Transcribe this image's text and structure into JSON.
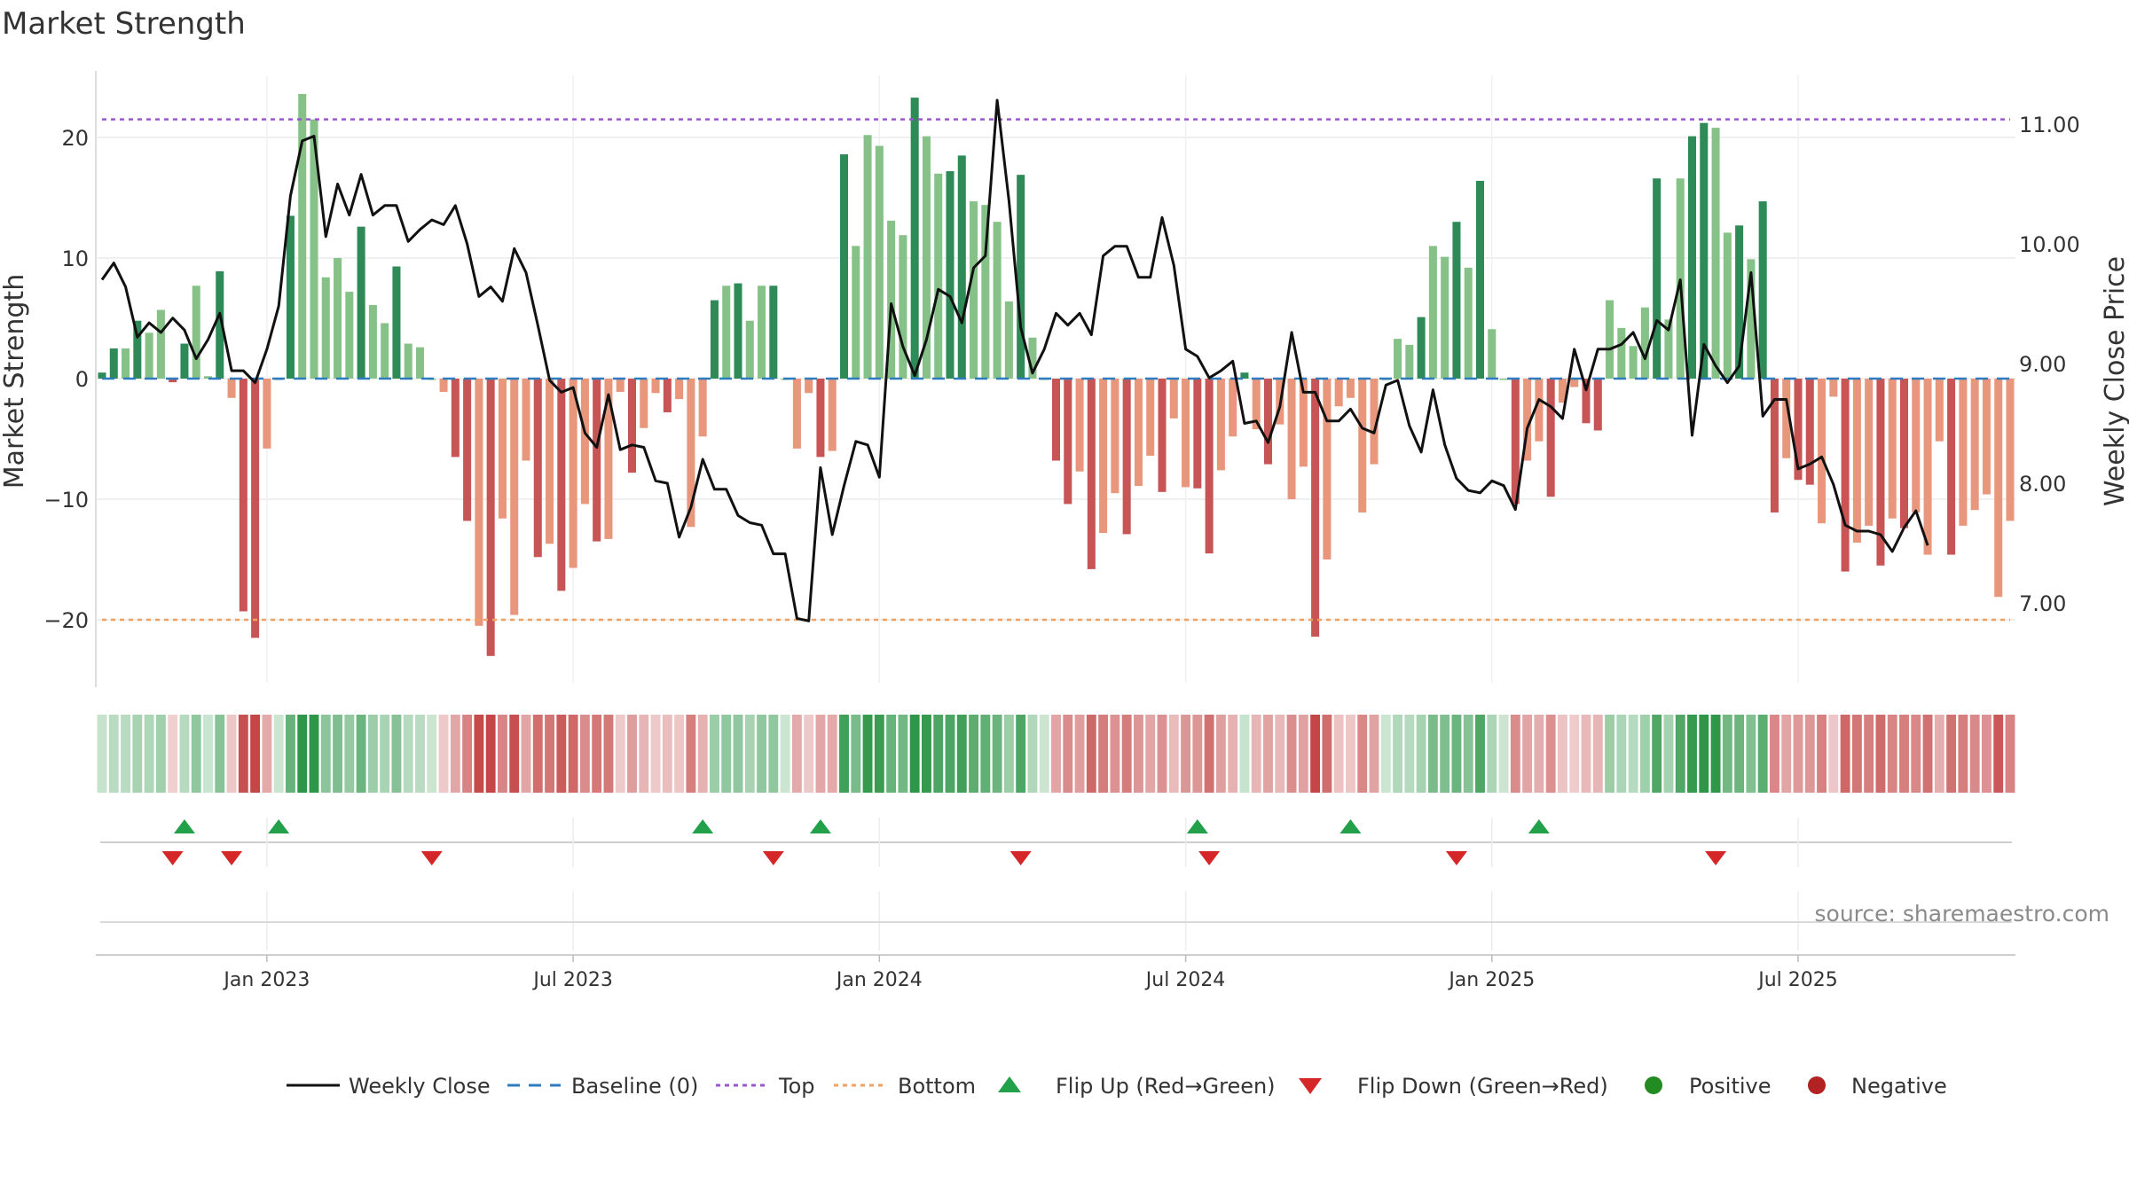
{
  "chart_data": {
    "type": "bar+line",
    "title": "Market Strength",
    "ylabel_left": "Market Strength",
    "ylabel_right": "Weekly Close Price",
    "left_ylim": [
      -25,
      25
    ],
    "left_yticks": [
      20,
      10,
      0,
      -10,
      -20
    ],
    "left_ytick_labels": [
      "20",
      "10",
      "0",
      "−10",
      "−20"
    ],
    "right_ylim": [
      6.4,
      11.2
    ],
    "right_yticks": [
      11,
      10,
      9,
      8,
      7
    ],
    "right_ytick_labels": [
      "11.00",
      "10.00",
      "9.00",
      "8.00",
      "7.00"
    ],
    "top_level": 21.5,
    "bottom_level": -20,
    "xaxis": {
      "start_week": "2022-09-26",
      "ticks": [
        {
          "week": 14,
          "label": "Jan 2023"
        },
        {
          "week": 40,
          "label": "Jul 2023"
        },
        {
          "week": 66,
          "label": "Jan 2024"
        },
        {
          "week": 92,
          "label": "Jul 2024"
        },
        {
          "week": 118,
          "label": "Jan 2025"
        },
        {
          "week": 144,
          "label": "Jul 2025"
        }
      ]
    },
    "strength": [
      0.5,
      2.5,
      2.5,
      4.8,
      3.8,
      5.7,
      -0.3,
      2.9,
      7.7,
      0.2,
      8.9,
      -1.6,
      -19.3,
      -21.5,
      -5.8,
      0,
      13.5,
      23.6,
      21.5,
      8.4,
      10,
      7.2,
      12.6,
      6.1,
      4.6,
      9.3,
      2.9,
      2.6,
      0,
      -1.1,
      -6.5,
      -11.8,
      -20.5,
      -23,
      -11.6,
      -19.6,
      -6.8,
      -14.8,
      -13.7,
      -17.6,
      -15.7,
      -10.4,
      -13.5,
      -13.3,
      -1.1,
      -7.8,
      -4.1,
      -1.2,
      -2.8,
      -1.7,
      -12.3,
      -4.8,
      6.5,
      7.7,
      7.9,
      4.8,
      7.7,
      7.7,
      0,
      -5.8,
      -1.2,
      -6.5,
      -6.0,
      18.6,
      11,
      20.2,
      19.3,
      13.1,
      11.9,
      23.3,
      20.1,
      17,
      17.2,
      18.5,
      14.7,
      14.4,
      13,
      6.4,
      16.9,
      3.4,
      0,
      -6.8,
      -10.4,
      -7.7,
      -15.8,
      -12.8,
      -9.5,
      -12.9,
      -8.9,
      -6.4,
      -9.4,
      -3.3,
      -9.0,
      -9.1,
      -14.5,
      -7.6,
      -4.8,
      0.5,
      -4.2,
      -7.1,
      -3.8,
      -10,
      -7.3,
      -21.4,
      -15,
      -2.3,
      -1.6,
      -11.1,
      -7.1,
      0,
      3.3,
      2.8,
      5.1,
      11,
      10.1,
      13,
      9.2,
      16.4,
      4.1,
      0,
      -10.4,
      -6.8,
      -5.2,
      -9.8,
      -2,
      -0.7,
      -3.7,
      -4.3,
      6.5,
      4.2,
      2.7,
      5.9,
      16.6,
      4.9,
      16.6,
      20.1,
      21.2,
      20.8,
      12.1,
      12.7,
      9.9,
      14.7,
      -11.1,
      -6.6,
      -8.4,
      -8.8,
      -12,
      -1.5,
      -16,
      -13.6,
      -12.2,
      -15.5,
      -11.6,
      -12.4,
      -11.1,
      -14.6,
      -5.2,
      -14.6,
      -12.2,
      -10.9,
      -9.6,
      -18.1,
      -11.8
    ],
    "close": [
      9.7,
      9.84,
      9.64,
      9.22,
      9.34,
      9.26,
      9.38,
      9.28,
      9.04,
      9.2,
      9.42,
      8.94,
      8.94,
      8.84,
      9.12,
      9.48,
      10.4,
      10.86,
      10.9,
      10.06,
      10.5,
      10.24,
      10.58,
      10.24,
      10.32,
      10.32,
      10.02,
      10.12,
      10.2,
      10.16,
      10.32,
      10.0,
      9.56,
      9.64,
      9.52,
      9.96,
      9.76,
      9.32,
      8.86,
      8.76,
      8.8,
      8.42,
      8.3,
      8.74,
      8.28,
      8.32,
      8.3,
      8.02,
      8.0,
      7.55,
      7.8,
      8.2,
      7.95,
      7.95,
      7.73,
      7.67,
      7.65,
      7.41,
      7.41,
      6.87,
      6.85,
      8.13,
      7.57,
      7.98,
      8.35,
      8.32,
      8.05,
      9.5,
      9.14,
      8.9,
      9.2,
      9.62,
      9.56,
      9.34,
      9.8,
      9.9,
      11.2,
      10.36,
      9.3,
      8.92,
      9.12,
      9.42,
      9.32,
      9.42,
      9.24,
      9.9,
      9.98,
      9.98,
      9.72,
      9.72,
      10.22,
      9.82,
      9.12,
      9.06,
      8.88,
      8.94,
      9.02,
      8.5,
      8.52,
      8.34,
      8.64,
      9.26,
      8.76,
      8.76,
      8.52,
      8.52,
      8.62,
      8.46,
      8.42,
      8.82,
      8.86,
      8.48,
      8.26,
      8.78,
      8.32,
      8.04,
      7.94,
      7.92,
      8.02,
      7.98,
      7.78,
      8.46,
      8.7,
      8.64,
      8.54,
      9.12,
      8.78,
      9.12,
      9.12,
      9.16,
      9.26,
      9.04,
      9.36,
      9.28,
      9.7,
      8.4,
      9.16,
      8.98,
      8.84,
      8.98,
      9.76,
      8.56,
      8.7,
      8.7,
      8.12,
      8.16,
      8.22,
      7.99,
      7.65,
      7.6,
      7.6,
      7.57,
      7.43,
      7.63,
      7.77,
      7.48
    ],
    "flip_up_weeks": [
      7,
      15,
      51,
      61,
      93,
      106,
      122
    ],
    "flip_down_weeks": [
      6,
      11,
      28,
      57,
      78,
      94,
      115,
      137
    ],
    "legend": [
      "Weekly Close",
      "Baseline (0)",
      "Top",
      "Bottom",
      "Flip Up (Red→Green)",
      "Flip Down (Green→Red)",
      "Positive",
      "Negative"
    ],
    "colors": {
      "pos_strong": "#2e8a57",
      "pos_weak": "#86c287",
      "neg_strong": "#c85556",
      "neg_weak": "#e8977c",
      "line": "#111111",
      "baseline": "#2f7bbf",
      "top": "#9a55cf",
      "bottom": "#f0a060",
      "flip_up": "#22a04a",
      "flip_down": "#d62728",
      "positive_dot": "#228b22",
      "negative_dot": "#b22222"
    }
  },
  "source": "source: sharemaestro.com"
}
